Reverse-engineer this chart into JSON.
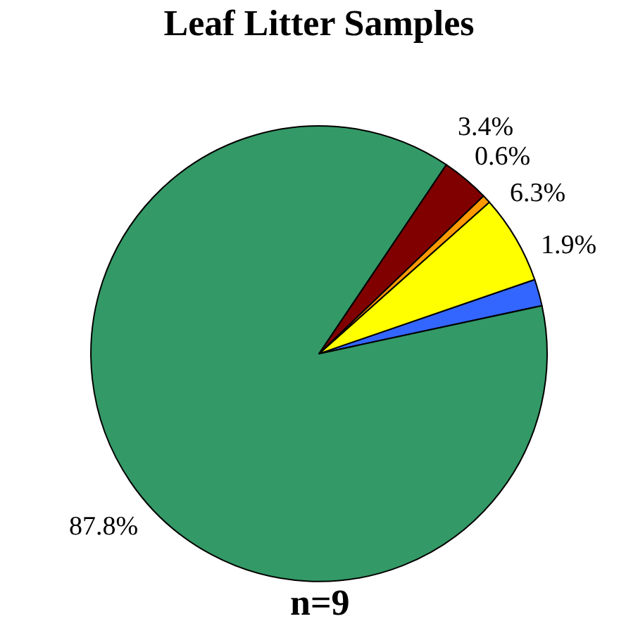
{
  "chart_data": {
    "type": "pie",
    "title": "Leaf Litter Samples",
    "categories": [
      null,
      null,
      null,
      null,
      null
    ],
    "values": [
      1.9,
      6.3,
      0.6,
      3.4,
      87.8
    ],
    "colors": [
      "#3366ff",
      "#ffff00",
      "#ff9900",
      "#800000",
      "#339966"
    ],
    "value_labels": [
      "1.9%",
      "6.3%",
      "0.6%",
      "3.4%",
      "87.8%"
    ],
    "annotations": [
      "n=9"
    ],
    "legend": false
  }
}
